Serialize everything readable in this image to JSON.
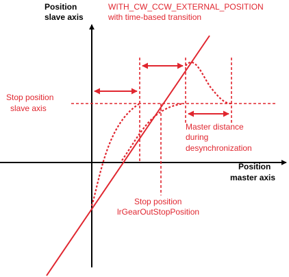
{
  "labels": {
    "y_axis_line1": "Position",
    "y_axis_line2": "slave axis",
    "x_axis_line1": "Position",
    "x_axis_line2": "master axis",
    "title_line1": "WITH_CW_CCW_EXTERNAL_POSITION",
    "title_line2": "with time-based transition",
    "stop_slave_line1": "Stop position",
    "stop_slave_line2": "slave axis",
    "master_dist_line1": "Master distance",
    "master_dist_line2": "during",
    "master_dist_line3": "desynchronization",
    "stop_master_line1": "Stop position",
    "stop_master_line2": "lrGearOutStopPosition"
  },
  "colors": {
    "axis": "#000000",
    "accent": "#e0262f"
  }
}
